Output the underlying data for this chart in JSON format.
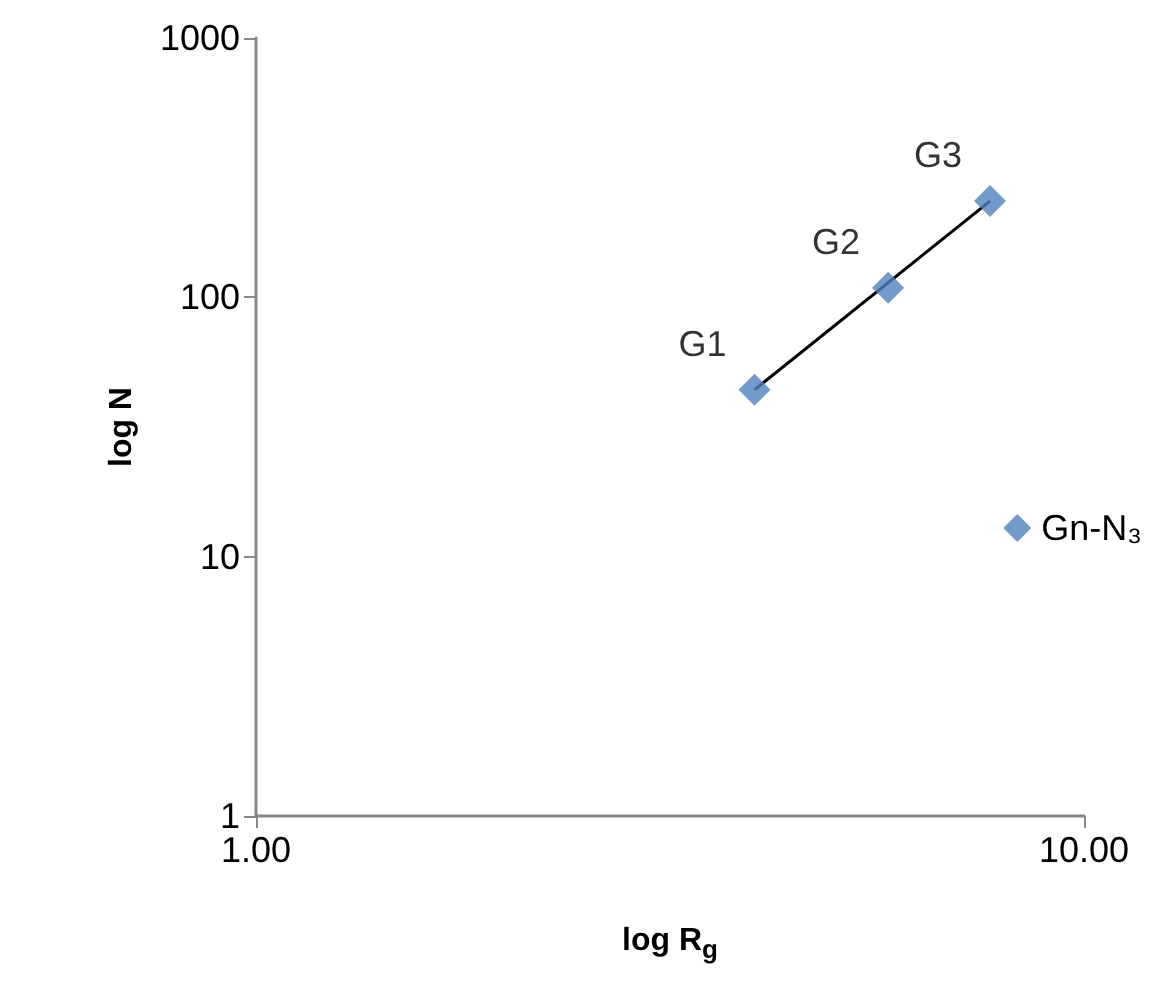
{
  "chart_data": {
    "type": "scatter",
    "xlabel": "log R$_{g}$",
    "ylabel": "log N",
    "log": "xy",
    "xlim": [
      1,
      10
    ],
    "xticks": [
      {
        "value": 1,
        "label": "1.00"
      },
      {
        "value": 10,
        "label": "10.00"
      }
    ],
    "ylim": [
      1,
      1000
    ],
    "yticks": [
      1,
      10,
      100,
      1000
    ],
    "grid": false,
    "legend": "right",
    "marker": "diamond",
    "series": [
      {
        "name": "Gn-N₃",
        "color": "#4f81bd",
        "x": [
          4.0,
          5.8,
          7.7
        ],
        "values": [
          44,
          109,
          235
        ],
        "value_labels": [
          "G1",
          "G2",
          "G3"
        ]
      },
      {
        "type": "line",
        "color": "#000000",
        "x": [
          4.0,
          7.7
        ],
        "values": [
          44,
          235
        ],
        "marker": "none",
        "line_style": "solid"
      }
    ]
  }
}
